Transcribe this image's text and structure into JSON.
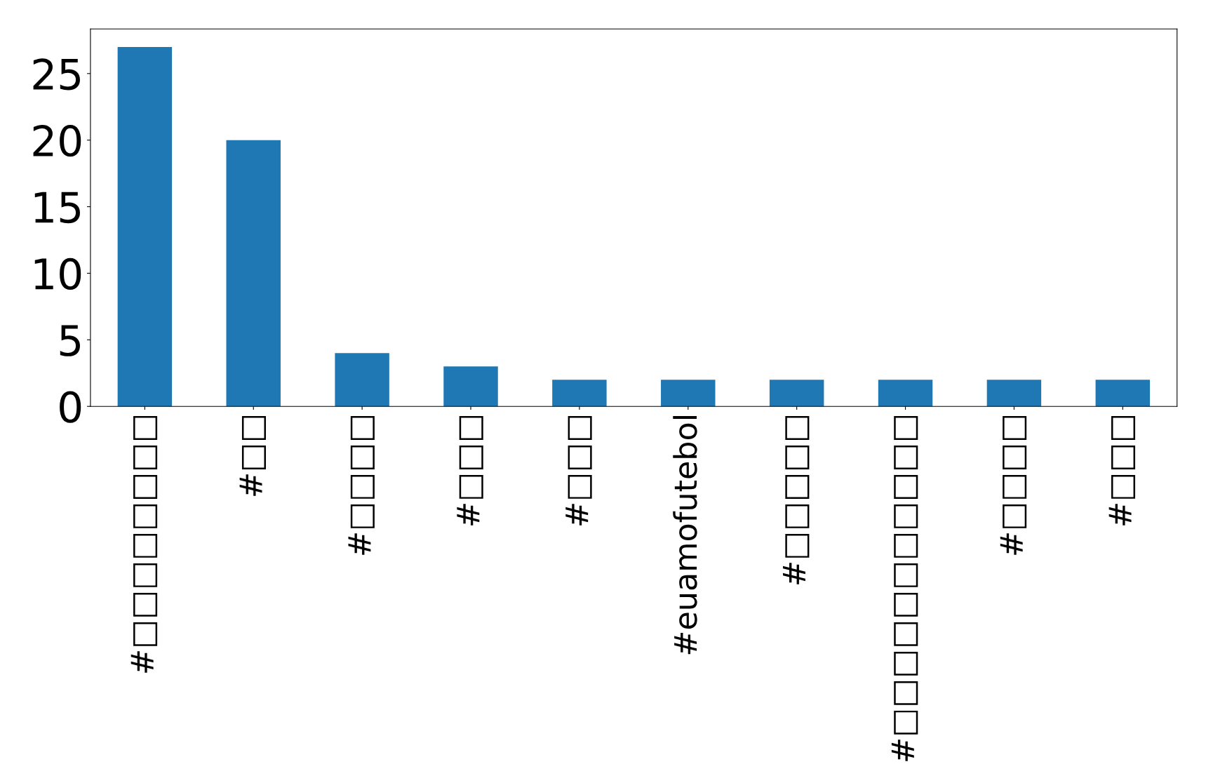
{
  "chart_data": {
    "type": "bar",
    "categories": [
      "#□□□□□□□□",
      "#□□",
      "#□□□□",
      "#□□□",
      "#□□□",
      "#euamofutebol",
      "#□□□□□",
      "#□□□□□□□□□□□",
      "#□□□□",
      "#□□□"
    ],
    "values": [
      27,
      20,
      4,
      3,
      2,
      2,
      2,
      2,
      2,
      2
    ],
    "color": "#1f77b4",
    "ylim": [
      0,
      28.35
    ],
    "yticks": [
      0,
      5,
      10,
      15,
      20,
      25
    ],
    "grid": false,
    "legend": false
  }
}
